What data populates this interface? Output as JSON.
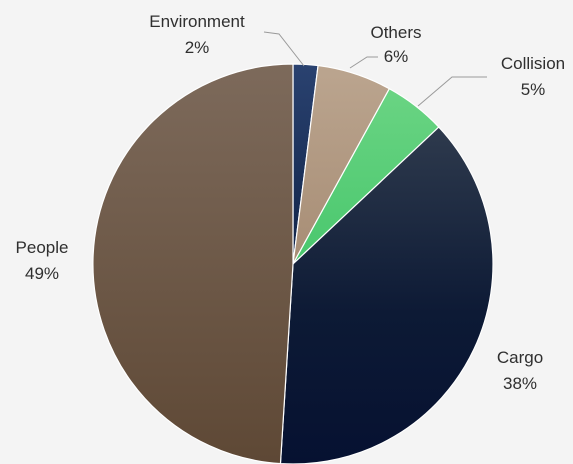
{
  "chart_data": {
    "type": "pie",
    "title": "",
    "start_angle_deg": 0,
    "direction": "clockwise",
    "legend": "none",
    "slices": [
      {
        "name": "Environment",
        "value": 2,
        "label": "2%",
        "color": "#1f3760"
      },
      {
        "name": "Others",
        "value": 6,
        "label": "6%",
        "color": "#b39a82"
      },
      {
        "name": "Collision",
        "value": 5,
        "label": "5%",
        "color": "#5dcd78"
      },
      {
        "name": "Cargo",
        "value": 38,
        "label": "38%",
        "color": "#0e1a33"
      },
      {
        "name": "People",
        "value": 49,
        "label": "49%",
        "color": "#6b5542"
      }
    ]
  }
}
